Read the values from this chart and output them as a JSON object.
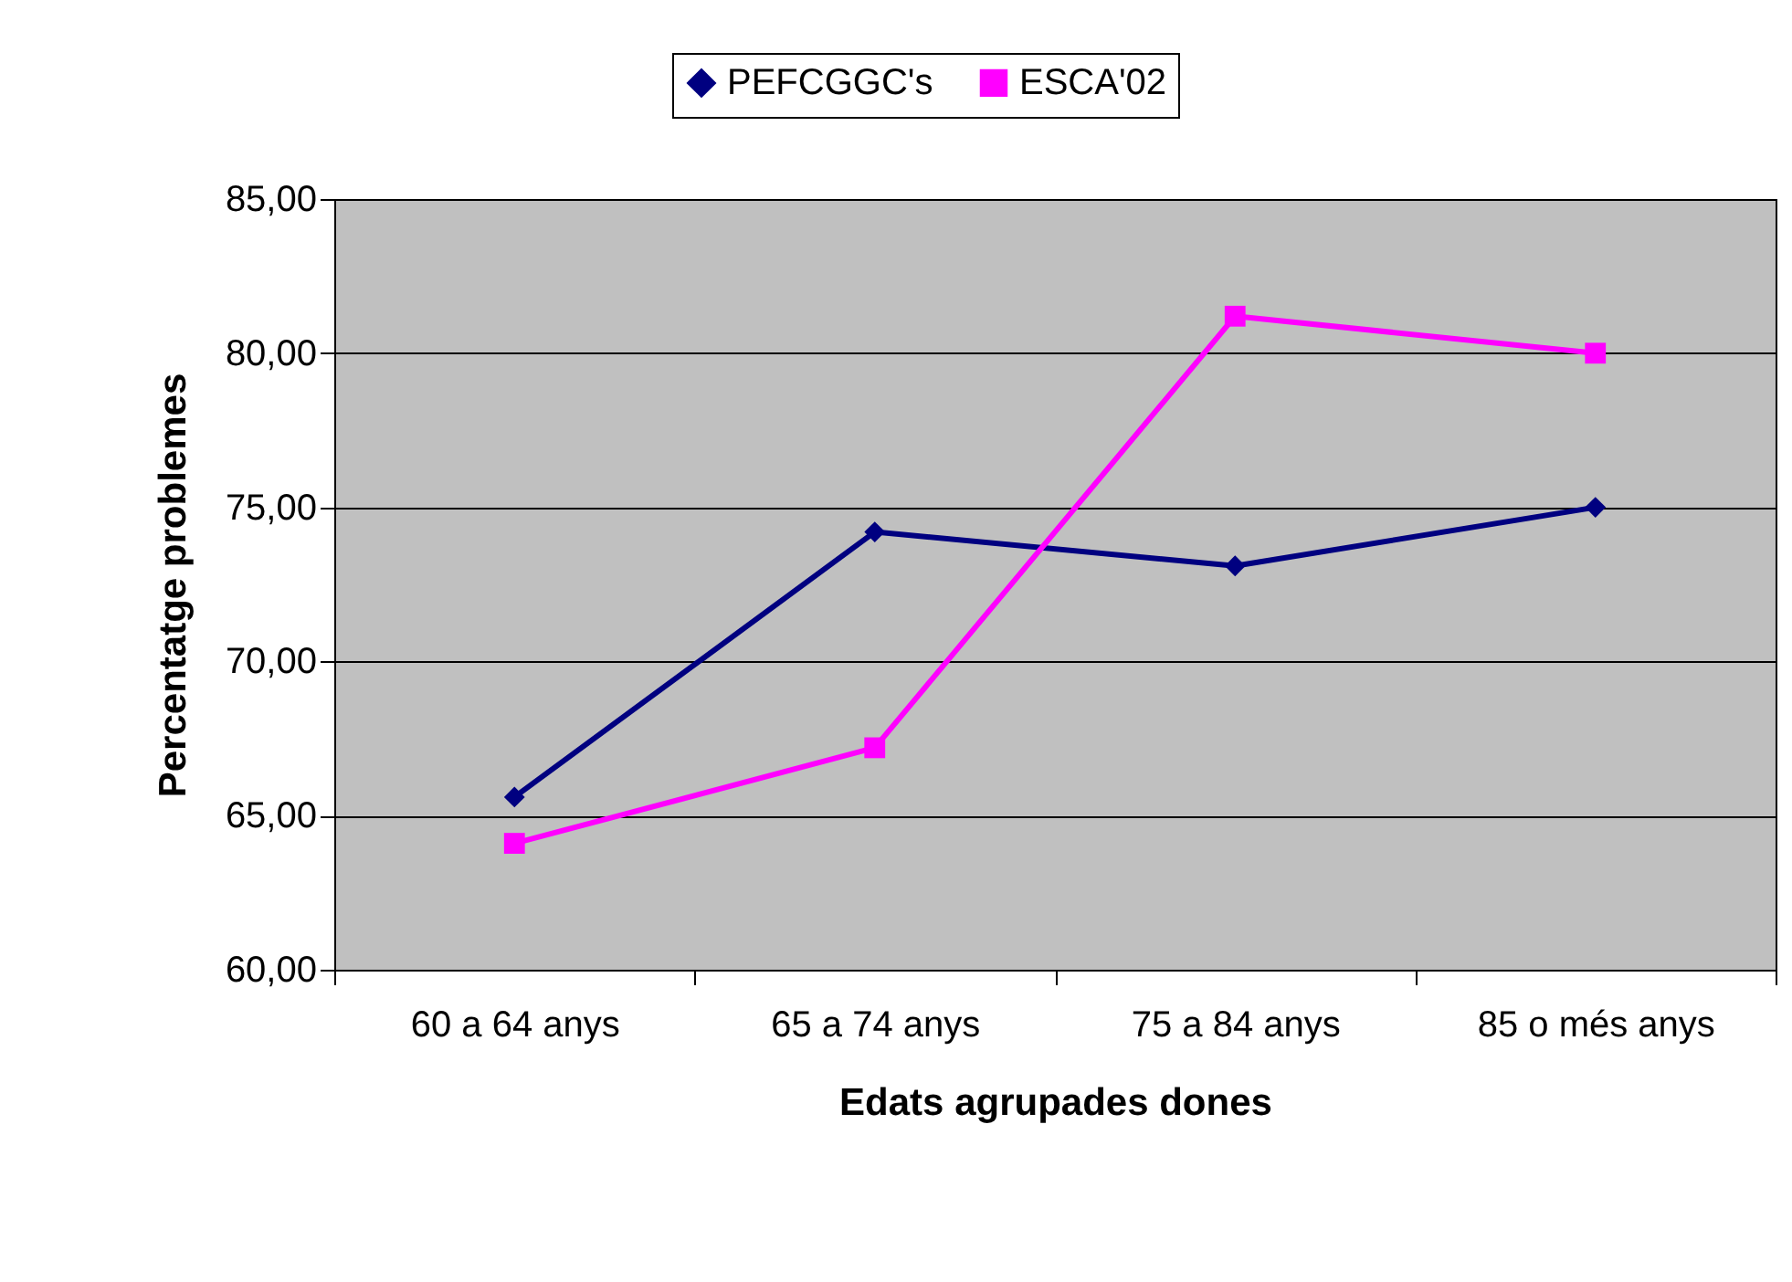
{
  "chart_data": {
    "type": "line",
    "xlabel": "Edats agrupades dones",
    "ylabel": "Percentatge problemes",
    "categories": [
      "60 a 64 anys",
      "65 a 74 anys",
      "75 a 84 anys",
      "85 o més anys"
    ],
    "series": [
      {
        "name": "PEFCGGC's",
        "color": "#000080",
        "marker": "diamond",
        "values": [
          65.6,
          74.2,
          73.1,
          75.0
        ]
      },
      {
        "name": "ESCA'02",
        "color": "#ff00ff",
        "marker": "square",
        "values": [
          64.1,
          67.2,
          81.2,
          80.0
        ]
      }
    ],
    "ylim": [
      60,
      85
    ],
    "yticks": [
      {
        "value": 60,
        "label": "60,00"
      },
      {
        "value": 65,
        "label": "65,00"
      },
      {
        "value": 70,
        "label": "70,00"
      },
      {
        "value": 75,
        "label": "75,00"
      },
      {
        "value": 80,
        "label": "80,00"
      },
      {
        "value": 85,
        "label": "85,00"
      }
    ],
    "grid": "y",
    "legend": "top",
    "line_style": "solid"
  }
}
